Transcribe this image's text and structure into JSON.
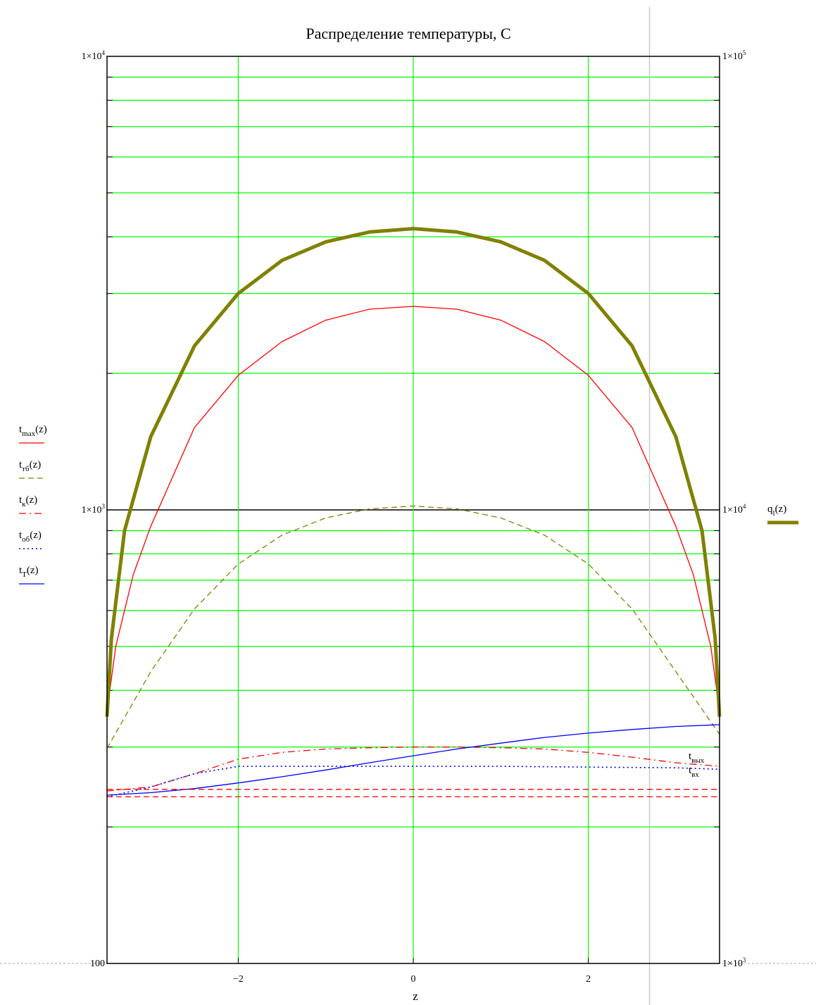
{
  "chart_data": {
    "type": "line",
    "title": "Распределение температуры, С",
    "xlabel": "z",
    "xlim": [
      -3.5,
      3.5
    ],
    "x_ticks": [
      -2,
      0,
      2
    ],
    "x_tick_labels": [
      "−2",
      "0",
      "2"
    ],
    "marker_line_x": 2.7,
    "y_left": {
      "scale": "log",
      "lim": [
        100,
        10000
      ],
      "tick_labels": [
        {
          "value": 10000,
          "mant": "1×10",
          "exp": "4"
        },
        {
          "value": 1000,
          "mant": "1×10",
          "exp": "3"
        },
        {
          "value": 100,
          "mant": "100",
          "exp": ""
        }
      ]
    },
    "y_right": {
      "scale": "log",
      "lim": [
        1000,
        100000
      ],
      "tick_labels": [
        {
          "value": 100000,
          "mant": "1×10",
          "exp": "5"
        },
        {
          "value": 10000,
          "mant": "1×10",
          "exp": "4"
        },
        {
          "value": 1000,
          "mant": "1×10",
          "exp": "3"
        }
      ]
    },
    "grid": true,
    "legend_left": [
      {
        "base": "t",
        "sub": "max",
        "suffix": "(z)",
        "color": "#ff0000",
        "style": "solid"
      },
      {
        "base": "t",
        "sub": "тб",
        "suffix": "(z)",
        "color": "#808000",
        "style": "dashed"
      },
      {
        "base": "t",
        "sub": "к",
        "suffix": "(z)",
        "color": "#ff0000",
        "style": "dashdot"
      },
      {
        "base": "t",
        "sub": "об",
        "suffix": "(z)",
        "color": "#0000ff",
        "style": "dotted"
      },
      {
        "base": "t",
        "sub": "T",
        "suffix": "(z)",
        "color": "#0000ff",
        "style": "solid"
      }
    ],
    "legend_right": [
      {
        "base": "q",
        "sub": "l",
        "suffix": "(z)",
        "color": "#808000",
        "style": "thick"
      }
    ],
    "annotations": [
      {
        "base": "t",
        "sub": "вых"
      },
      {
        "base": "t",
        "sub": "вх"
      }
    ],
    "series": [
      {
        "name": "t_max(z)",
        "axis": "left",
        "color": "#ff0000",
        "style": "solid",
        "x": [
          -3.5,
          -3.4,
          -3.2,
          -3.0,
          -2.5,
          -2.0,
          -1.5,
          -1.0,
          -0.5,
          0,
          0.5,
          1.0,
          1.5,
          2.0,
          2.5,
          3.0,
          3.2,
          3.4,
          3.5
        ],
        "y": [
          360,
          500,
          720,
          920,
          1520,
          1980,
          2350,
          2620,
          2770,
          2810,
          2770,
          2620,
          2350,
          1980,
          1520,
          920,
          720,
          500,
          360
        ]
      },
      {
        "name": "t_тб(z)",
        "axis": "left",
        "color": "#808000",
        "style": "dashed",
        "x": [
          -3.5,
          -3.0,
          -2.5,
          -2.0,
          -1.5,
          -1.0,
          -0.5,
          0,
          0.5,
          1.0,
          1.5,
          2.0,
          2.5,
          3.0,
          3.5
        ],
        "y": [
          298,
          440,
          605,
          760,
          880,
          960,
          1005,
          1020,
          1005,
          960,
          880,
          760,
          605,
          440,
          320
        ]
      },
      {
        "name": "t_к(z)",
        "axis": "left",
        "color": "#ff0000",
        "style": "dashdot",
        "x": [
          -3.5,
          -3.0,
          -2.5,
          -2.0,
          -1.5,
          -1.0,
          -0.5,
          0,
          0.5,
          1.0,
          1.5,
          2.0,
          2.5,
          3.0,
          3.5
        ],
        "y": [
          240,
          245,
          262,
          282,
          292,
          297,
          299,
          300,
          300,
          299,
          297,
          292,
          285,
          277,
          272
        ]
      },
      {
        "name": "t_об(z)",
        "axis": "left",
        "color": "#0000ff",
        "style": "dotted",
        "x": [
          -3.5,
          -3.0,
          -2.5,
          -2.0,
          -1.5,
          -1.0,
          0,
          1.0,
          2.0,
          3.0,
          3.5
        ],
        "y": [
          233,
          245,
          262,
          272,
          272,
          272,
          272,
          272,
          271,
          270,
          268
        ]
      },
      {
        "name": "t_T(z)",
        "axis": "left",
        "color": "#0000ff",
        "style": "solid",
        "x": [
          -3.5,
          -3.0,
          -2.5,
          -2.0,
          -1.5,
          -1.0,
          -0.5,
          0,
          0.5,
          1.0,
          1.5,
          2.0,
          2.5,
          3.0,
          3.5
        ],
        "y": [
          235,
          238,
          243,
          250,
          258,
          267,
          277,
          287,
          297,
          306,
          315,
          322,
          328,
          333,
          336
        ]
      },
      {
        "name": "q_l(z)",
        "axis": "right",
        "color": "#808000",
        "style": "thick",
        "x": [
          -3.5,
          -3.45,
          -3.3,
          -3.0,
          -2.5,
          -2.0,
          -1.5,
          -1.0,
          -0.5,
          0,
          0.5,
          1.0,
          1.5,
          2.0,
          2.5,
          3.0,
          3.3,
          3.45,
          3.5
        ],
        "y": [
          3500,
          5200,
          9000,
          14500,
          23000,
          30000,
          35500,
          39000,
          41000,
          41700,
          41000,
          39000,
          35500,
          30000,
          23000,
          14500,
          9000,
          5200,
          3500
        ]
      },
      {
        "name": "t_вых",
        "axis": "left",
        "color": "#ff0000",
        "style": "dashed",
        "x": [
          -3.5,
          3.5
        ],
        "y": [
          242,
          242
        ]
      },
      {
        "name": "t_вх",
        "axis": "left",
        "color": "#ff0000",
        "style": "dashed",
        "x": [
          -3.5,
          3.5
        ],
        "y": [
          233,
          233
        ]
      }
    ]
  }
}
